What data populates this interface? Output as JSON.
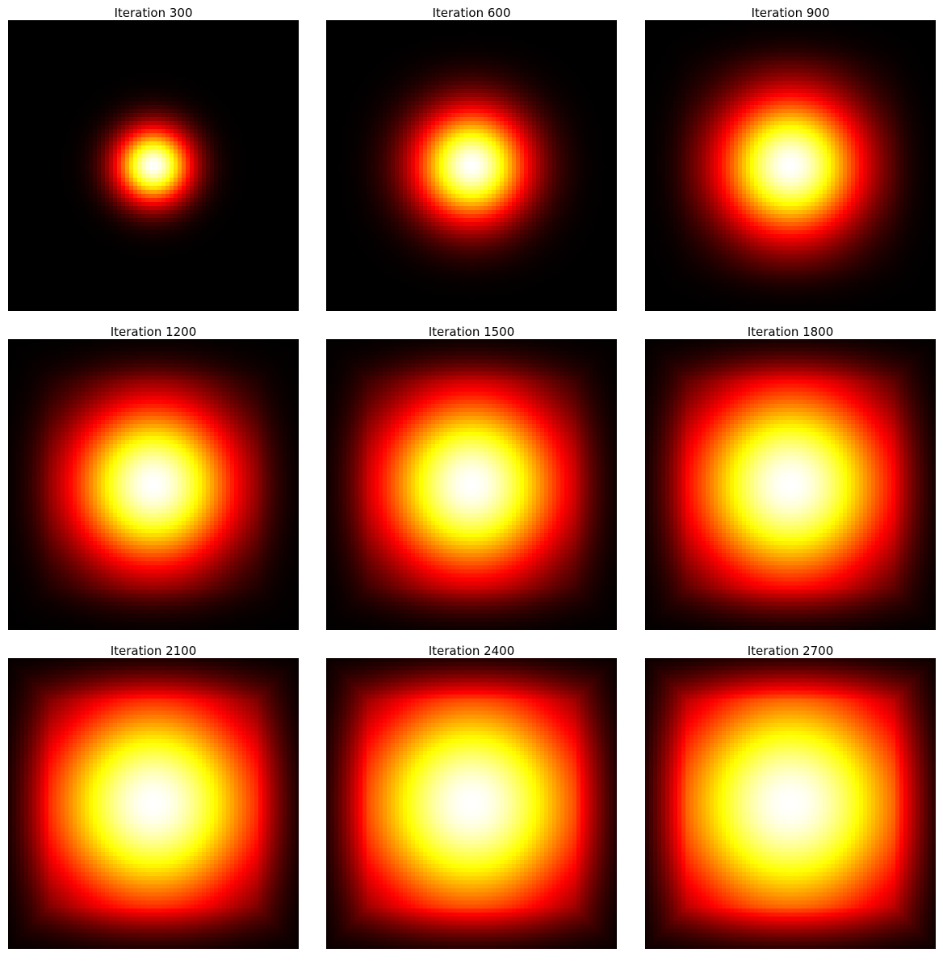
{
  "figure": {
    "colormap": "hot",
    "background": "#ffffff"
  },
  "chart_data": [
    {
      "type": "heatmap",
      "title": "Iteration 300",
      "iteration": 300,
      "grid": false,
      "axes_visible": false,
      "colormap": "hot",
      "peak_value": 1.0,
      "field": {
        "kind": "radial-diffusion",
        "spread": 0.085
      }
    },
    {
      "type": "heatmap",
      "title": "Iteration 600",
      "iteration": 600,
      "grid": false,
      "axes_visible": false,
      "colormap": "hot",
      "peak_value": 1.0,
      "field": {
        "kind": "radial-diffusion",
        "spread": 0.128
      }
    },
    {
      "type": "heatmap",
      "title": "Iteration 900",
      "iteration": 900,
      "grid": false,
      "axes_visible": false,
      "colormap": "hot",
      "peak_value": 1.0,
      "field": {
        "kind": "radial-diffusion",
        "spread": 0.162
      }
    },
    {
      "type": "heatmap",
      "title": "Iteration 1200",
      "iteration": 1200,
      "grid": false,
      "axes_visible": false,
      "colormap": "hot",
      "peak_value": 1.0,
      "field": {
        "kind": "radial-diffusion",
        "spread": 0.19
      }
    },
    {
      "type": "heatmap",
      "title": "Iteration 1500",
      "iteration": 1500,
      "grid": false,
      "axes_visible": false,
      "colormap": "hot",
      "peak_value": 1.0,
      "field": {
        "kind": "radial-diffusion",
        "spread": 0.214
      }
    },
    {
      "type": "heatmap",
      "title": "Iteration 1800",
      "iteration": 1800,
      "grid": false,
      "axes_visible": false,
      "colormap": "hot",
      "peak_value": 1.0,
      "field": {
        "kind": "radial-diffusion",
        "spread": 0.236
      }
    },
    {
      "type": "heatmap",
      "title": "Iteration 2100",
      "iteration": 2100,
      "grid": false,
      "axes_visible": false,
      "colormap": "hot",
      "peak_value": 1.0,
      "field": {
        "kind": "radial-diffusion",
        "spread": 0.256
      }
    },
    {
      "type": "heatmap",
      "title": "Iteration 2400",
      "iteration": 2400,
      "grid": false,
      "axes_visible": false,
      "colormap": "hot",
      "peak_value": 1.0,
      "field": {
        "kind": "radial-diffusion",
        "spread": 0.274
      }
    },
    {
      "type": "heatmap",
      "title": "Iteration 2700",
      "iteration": 2700,
      "grid": false,
      "axes_visible": false,
      "colormap": "hot",
      "peak_value": 1.0,
      "field": {
        "kind": "radial-diffusion",
        "spread": 0.29
      }
    }
  ]
}
